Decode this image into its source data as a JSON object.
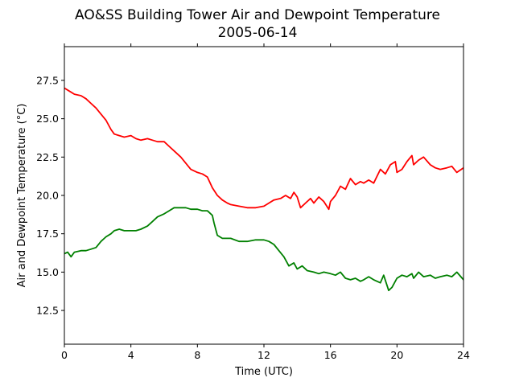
{
  "chart_data": {
    "type": "line",
    "title": "AO&SS Building Tower Air and Dewpoint Temperature",
    "subtitle": "2005-06-14",
    "xlabel": "Time (UTC)",
    "ylabel": "Air and Dewpoint Temperature (°C)",
    "xlim": [
      0,
      24
    ],
    "ylim": [
      10.3,
      29.7
    ],
    "xticks": [
      0,
      4,
      8,
      12,
      16,
      20,
      24
    ],
    "yticks": [
      12.5,
      15.0,
      17.5,
      20.0,
      22.5,
      25.0,
      27.5
    ],
    "grid": false,
    "legend": "none",
    "series": [
      {
        "color": "#ff0000",
        "x": [
          0,
          0.3,
          0.6,
          1.0,
          1.3,
          1.6,
          1.9,
          2.2,
          2.5,
          2.8,
          3.0,
          3.3,
          3.6,
          4.0,
          4.3,
          4.6,
          5.0,
          5.3,
          5.6,
          6.0,
          6.3,
          6.6,
          7.0,
          7.3,
          7.6,
          8.0,
          8.3,
          8.6,
          8.9,
          9.2,
          9.5,
          9.8,
          10.0,
          10.5,
          11.0,
          11.5,
          12.0,
          12.3,
          12.6,
          13.0,
          13.3,
          13.6,
          13.8,
          14.0,
          14.2,
          14.5,
          14.8,
          15.0,
          15.3,
          15.6,
          15.9,
          16.0,
          16.3,
          16.6,
          16.9,
          17.2,
          17.5,
          17.8,
          18.0,
          18.3,
          18.6,
          19.0,
          19.3,
          19.6,
          19.9,
          20.0,
          20.3,
          20.6,
          20.9,
          21.0,
          21.3,
          21.6,
          22.0,
          22.3,
          22.6,
          23.0,
          23.3,
          23.6,
          24.0
        ],
        "y": [
          27.0,
          26.8,
          26.6,
          26.5,
          26.3,
          26.0,
          25.7,
          25.3,
          24.9,
          24.3,
          24.0,
          23.9,
          23.8,
          23.9,
          23.7,
          23.6,
          23.7,
          23.6,
          23.5,
          23.5,
          23.2,
          22.9,
          22.5,
          22.1,
          21.7,
          21.5,
          21.4,
          21.2,
          20.5,
          20.0,
          19.7,
          19.5,
          19.4,
          19.3,
          19.2,
          19.2,
          19.3,
          19.5,
          19.7,
          19.8,
          20.0,
          19.8,
          20.2,
          19.9,
          19.2,
          19.5,
          19.8,
          19.5,
          19.9,
          19.6,
          19.1,
          19.6,
          20.0,
          20.6,
          20.4,
          21.1,
          20.7,
          20.9,
          20.8,
          21.0,
          20.8,
          21.7,
          21.4,
          22.0,
          22.2,
          21.5,
          21.7,
          22.2,
          22.6,
          22.0,
          22.3,
          22.5,
          22.0,
          21.8,
          21.7,
          21.8,
          21.9,
          21.5,
          21.8
        ]
      },
      {
        "color": "#008000",
        "x": [
          0,
          0.2,
          0.4,
          0.6,
          1.0,
          1.3,
          1.6,
          1.9,
          2.2,
          2.5,
          2.8,
          3.0,
          3.3,
          3.6,
          4.0,
          4.3,
          4.6,
          5.0,
          5.3,
          5.6,
          6.0,
          6.3,
          6.6,
          7.0,
          7.3,
          7.6,
          8.0,
          8.3,
          8.6,
          8.9,
          9.0,
          9.2,
          9.5,
          10.0,
          10.5,
          11.0,
          11.5,
          12.0,
          12.3,
          12.6,
          12.9,
          13.2,
          13.5,
          13.8,
          14.0,
          14.3,
          14.6,
          15.0,
          15.3,
          15.6,
          16.0,
          16.3,
          16.6,
          16.9,
          17.2,
          17.5,
          17.8,
          18.0,
          18.3,
          18.6,
          19.0,
          19.2,
          19.5,
          19.7,
          20.0,
          20.3,
          20.6,
          20.9,
          21.0,
          21.3,
          21.6,
          22.0,
          22.3,
          22.6,
          23.0,
          23.3,
          23.6,
          24.0
        ],
        "y": [
          16.2,
          16.3,
          16.0,
          16.3,
          16.4,
          16.4,
          16.5,
          16.6,
          17.0,
          17.3,
          17.5,
          17.7,
          17.8,
          17.7,
          17.7,
          17.7,
          17.8,
          18.0,
          18.3,
          18.6,
          18.8,
          19.0,
          19.2,
          19.2,
          19.2,
          19.1,
          19.1,
          19.0,
          19.0,
          18.7,
          18.2,
          17.4,
          17.2,
          17.2,
          17.0,
          17.0,
          17.1,
          17.1,
          17.0,
          16.8,
          16.4,
          16.0,
          15.4,
          15.6,
          15.2,
          15.4,
          15.1,
          15.0,
          14.9,
          15.0,
          14.9,
          14.8,
          15.0,
          14.6,
          14.5,
          14.6,
          14.4,
          14.5,
          14.7,
          14.5,
          14.3,
          14.8,
          13.8,
          14.0,
          14.6,
          14.8,
          14.7,
          14.9,
          14.6,
          15.0,
          14.7,
          14.8,
          14.6,
          14.7,
          14.8,
          14.7,
          15.0,
          14.5
        ]
      }
    ]
  }
}
